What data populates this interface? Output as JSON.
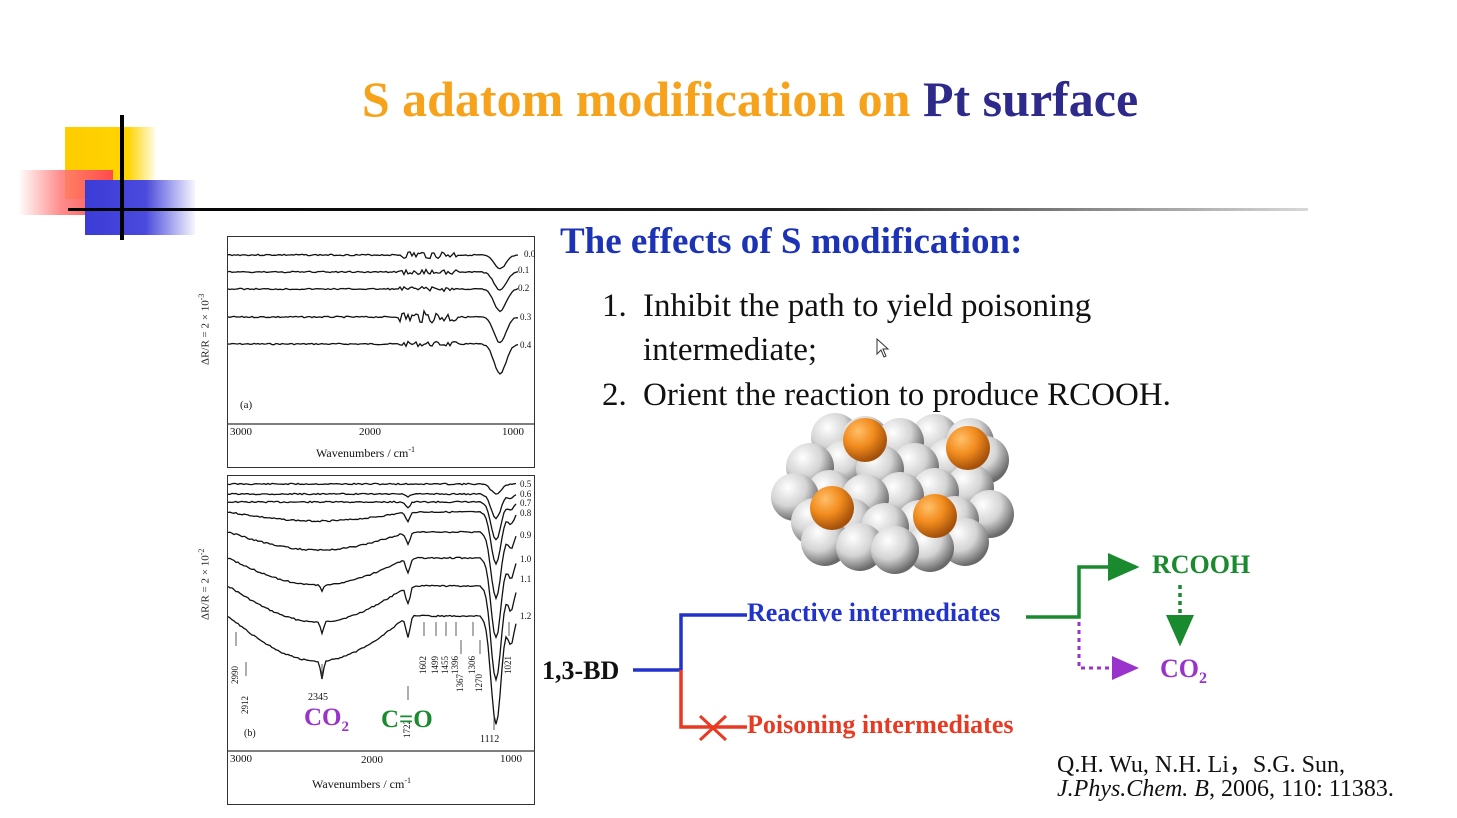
{
  "slide": {
    "title_part1": "S adatom modification on",
    "title_part2": "Pt surface",
    "subtitle": "The effects of S modification:",
    "points": [
      {
        "num": "1.",
        "line1": "Inhibit the  path to yield poisoning",
        "line2": "intermediate;"
      },
      {
        "num": "2.",
        "line1": "Orient the reaction to produce RCOOH."
      }
    ]
  },
  "spectra": {
    "panel_a": {
      "label": "(a)",
      "ylabel": "ΔR/R = 2 × 10",
      "ylabel_exp": "-3",
      "xlabel": "Wavenumbers / cm",
      "xlabel_exp": "-1",
      "xticks": [
        "3000",
        "2000",
        "1000"
      ],
      "trace_labels": [
        "0.0",
        "0.1",
        "0.2",
        "0.3",
        "0.4"
      ]
    },
    "panel_b": {
      "label": "(b)",
      "ylabel": "ΔR/R = 2 × 10",
      "ylabel_exp": "-2",
      "xlabel": "Wavenumbers / cm",
      "xlabel_exp": "-1",
      "xticks": [
        "3000",
        "2000",
        "1000"
      ],
      "trace_labels": [
        "0.5",
        "0.6",
        "0.7",
        "0.8",
        "0.9",
        "1.0",
        "1.1",
        "1.2"
      ],
      "peaks": [
        "2990",
        "2912",
        "2345",
        "1722",
        "1602",
        "1499",
        "1455",
        "1396",
        "1367",
        "1306",
        "1270",
        "1112",
        "1021"
      ],
      "co2_main": "CO",
      "co2_sub": "2",
      "co_label": "C=O"
    }
  },
  "pathway": {
    "start": "1,3-BD",
    "reactive": "Reactive intermediates",
    "poisoning": "Poisoning intermediates",
    "product": "RCOOH",
    "co2_main": "CO",
    "co2_sub": "2"
  },
  "reference": {
    "line1": "Q.H. Wu, N.H. Li，S.G. Sun,",
    "journal": "J.Phys.Chem. B,",
    "details": " 2006, 110: 11383."
  },
  "colors": {
    "title_orange": "#f7a21b",
    "title_blue": "#2e2a8c",
    "subtitle_blue": "#1c33b6",
    "reactive_blue": "#2233cc",
    "poison_red": "#e83a22",
    "rcooh_green": "#1a8a2e",
    "co2_purple": "#9a33cc",
    "adatom_orange": "#f28c1e"
  }
}
